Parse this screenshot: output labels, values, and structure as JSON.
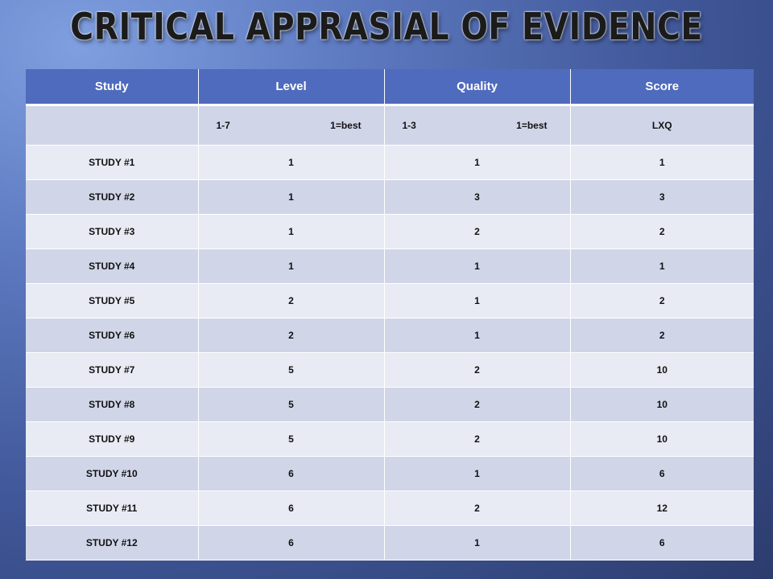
{
  "title": "CRITICAL APPRASIAL OF EVIDENCE",
  "table": {
    "headers": [
      "Study",
      "Level",
      "Quality",
      "Score"
    ],
    "subheader": {
      "study": "",
      "level_range": "1-7",
      "level_note": "1=best",
      "quality_range": "1-3",
      "quality_note": "1=best",
      "score": "LXQ"
    },
    "rows": [
      [
        "STUDY #1",
        "1",
        "1",
        "1"
      ],
      [
        "STUDY #2",
        "1",
        "3",
        "3"
      ],
      [
        "STUDY #3",
        "1",
        "2",
        "2"
      ],
      [
        "STUDY #4",
        "1",
        "1",
        "1"
      ],
      [
        "STUDY #5",
        "2",
        "1",
        "2"
      ],
      [
        "STUDY #6",
        "2",
        "1",
        "2"
      ],
      [
        "STUDY #7",
        "5",
        "2",
        "10"
      ],
      [
        "STUDY #8",
        "5",
        "2",
        "10"
      ],
      [
        "STUDY #9",
        "5",
        "2",
        "10"
      ],
      [
        "STUDY #10",
        "6",
        "1",
        "6"
      ],
      [
        "STUDY #11",
        "6",
        "2",
        "12"
      ],
      [
        "STUDY #12",
        "6",
        "1",
        "6"
      ]
    ]
  },
  "colors": {
    "header_bg": "#4f6bbd",
    "row_odd": "#d1d5e8",
    "row_even": "#e8eaf4",
    "background": "#3f5697"
  }
}
